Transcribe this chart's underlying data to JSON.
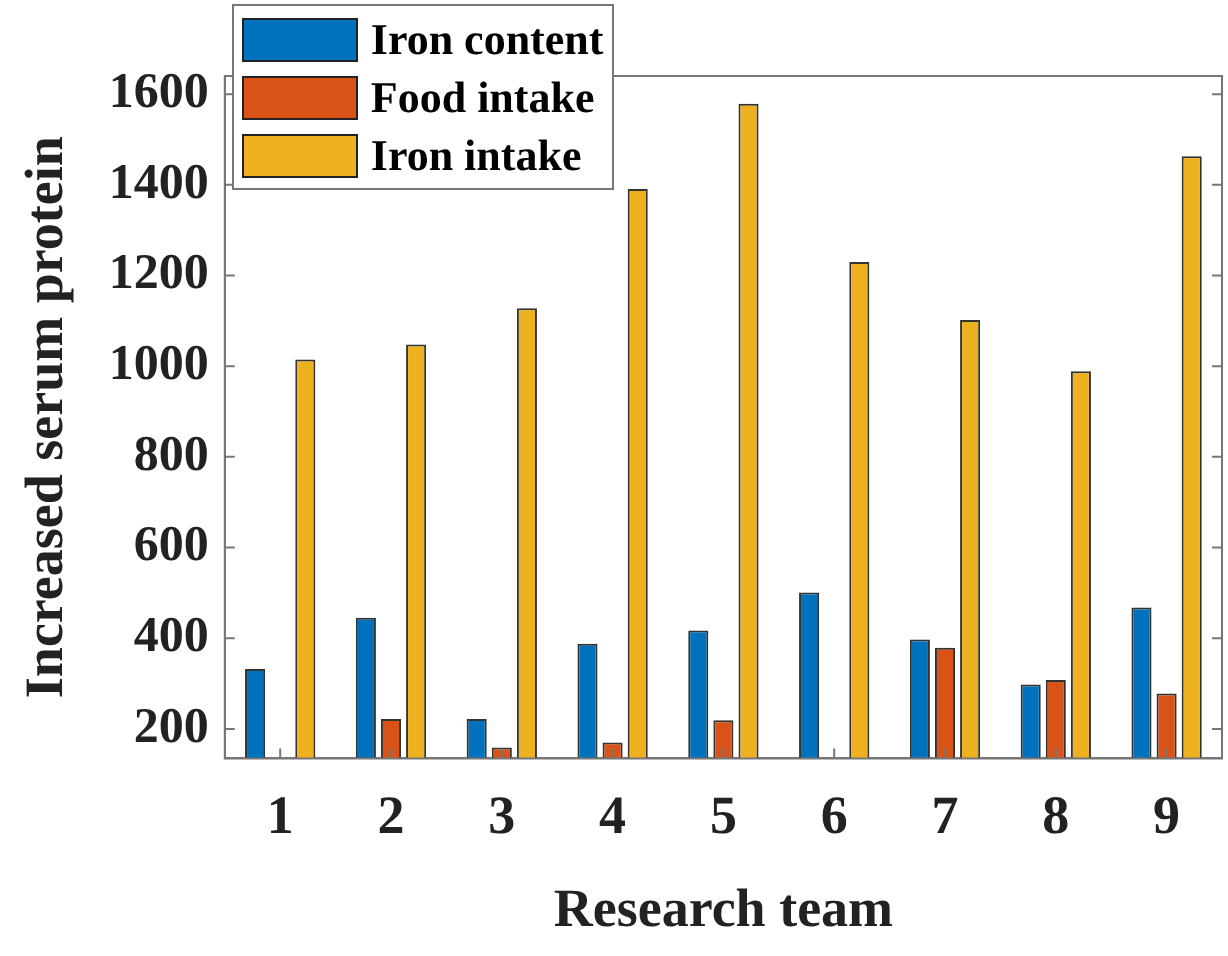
{
  "chart_data": {
    "type": "bar",
    "xlabel": "Research team",
    "ylabel": "Increased serum protein",
    "categories": [
      "1",
      "2",
      "3",
      "4",
      "5",
      "6",
      "7",
      "8",
      "9"
    ],
    "series": [
      {
        "name": "Iron content",
        "color": "#0072bd",
        "values": [
          332,
          445,
          222,
          388,
          417,
          501,
          397,
          298,
          468
        ]
      },
      {
        "name": "Food intake",
        "color": "#d95319",
        "values": [
          null,
          222,
          159,
          170,
          219,
          null,
          379,
          308,
          278
        ]
      },
      {
        "name": "Iron intake",
        "color": "#edb120",
        "values": [
          1015,
          1048,
          1128,
          1391,
          1579,
          1230,
          1102,
          989,
          1463
        ]
      }
    ],
    "ylim": [
      135,
      1640
    ],
    "yticks": [
      200,
      400,
      600,
      800,
      1000,
      1200,
      1400,
      1600
    ],
    "grid": false,
    "legend": "top left"
  }
}
